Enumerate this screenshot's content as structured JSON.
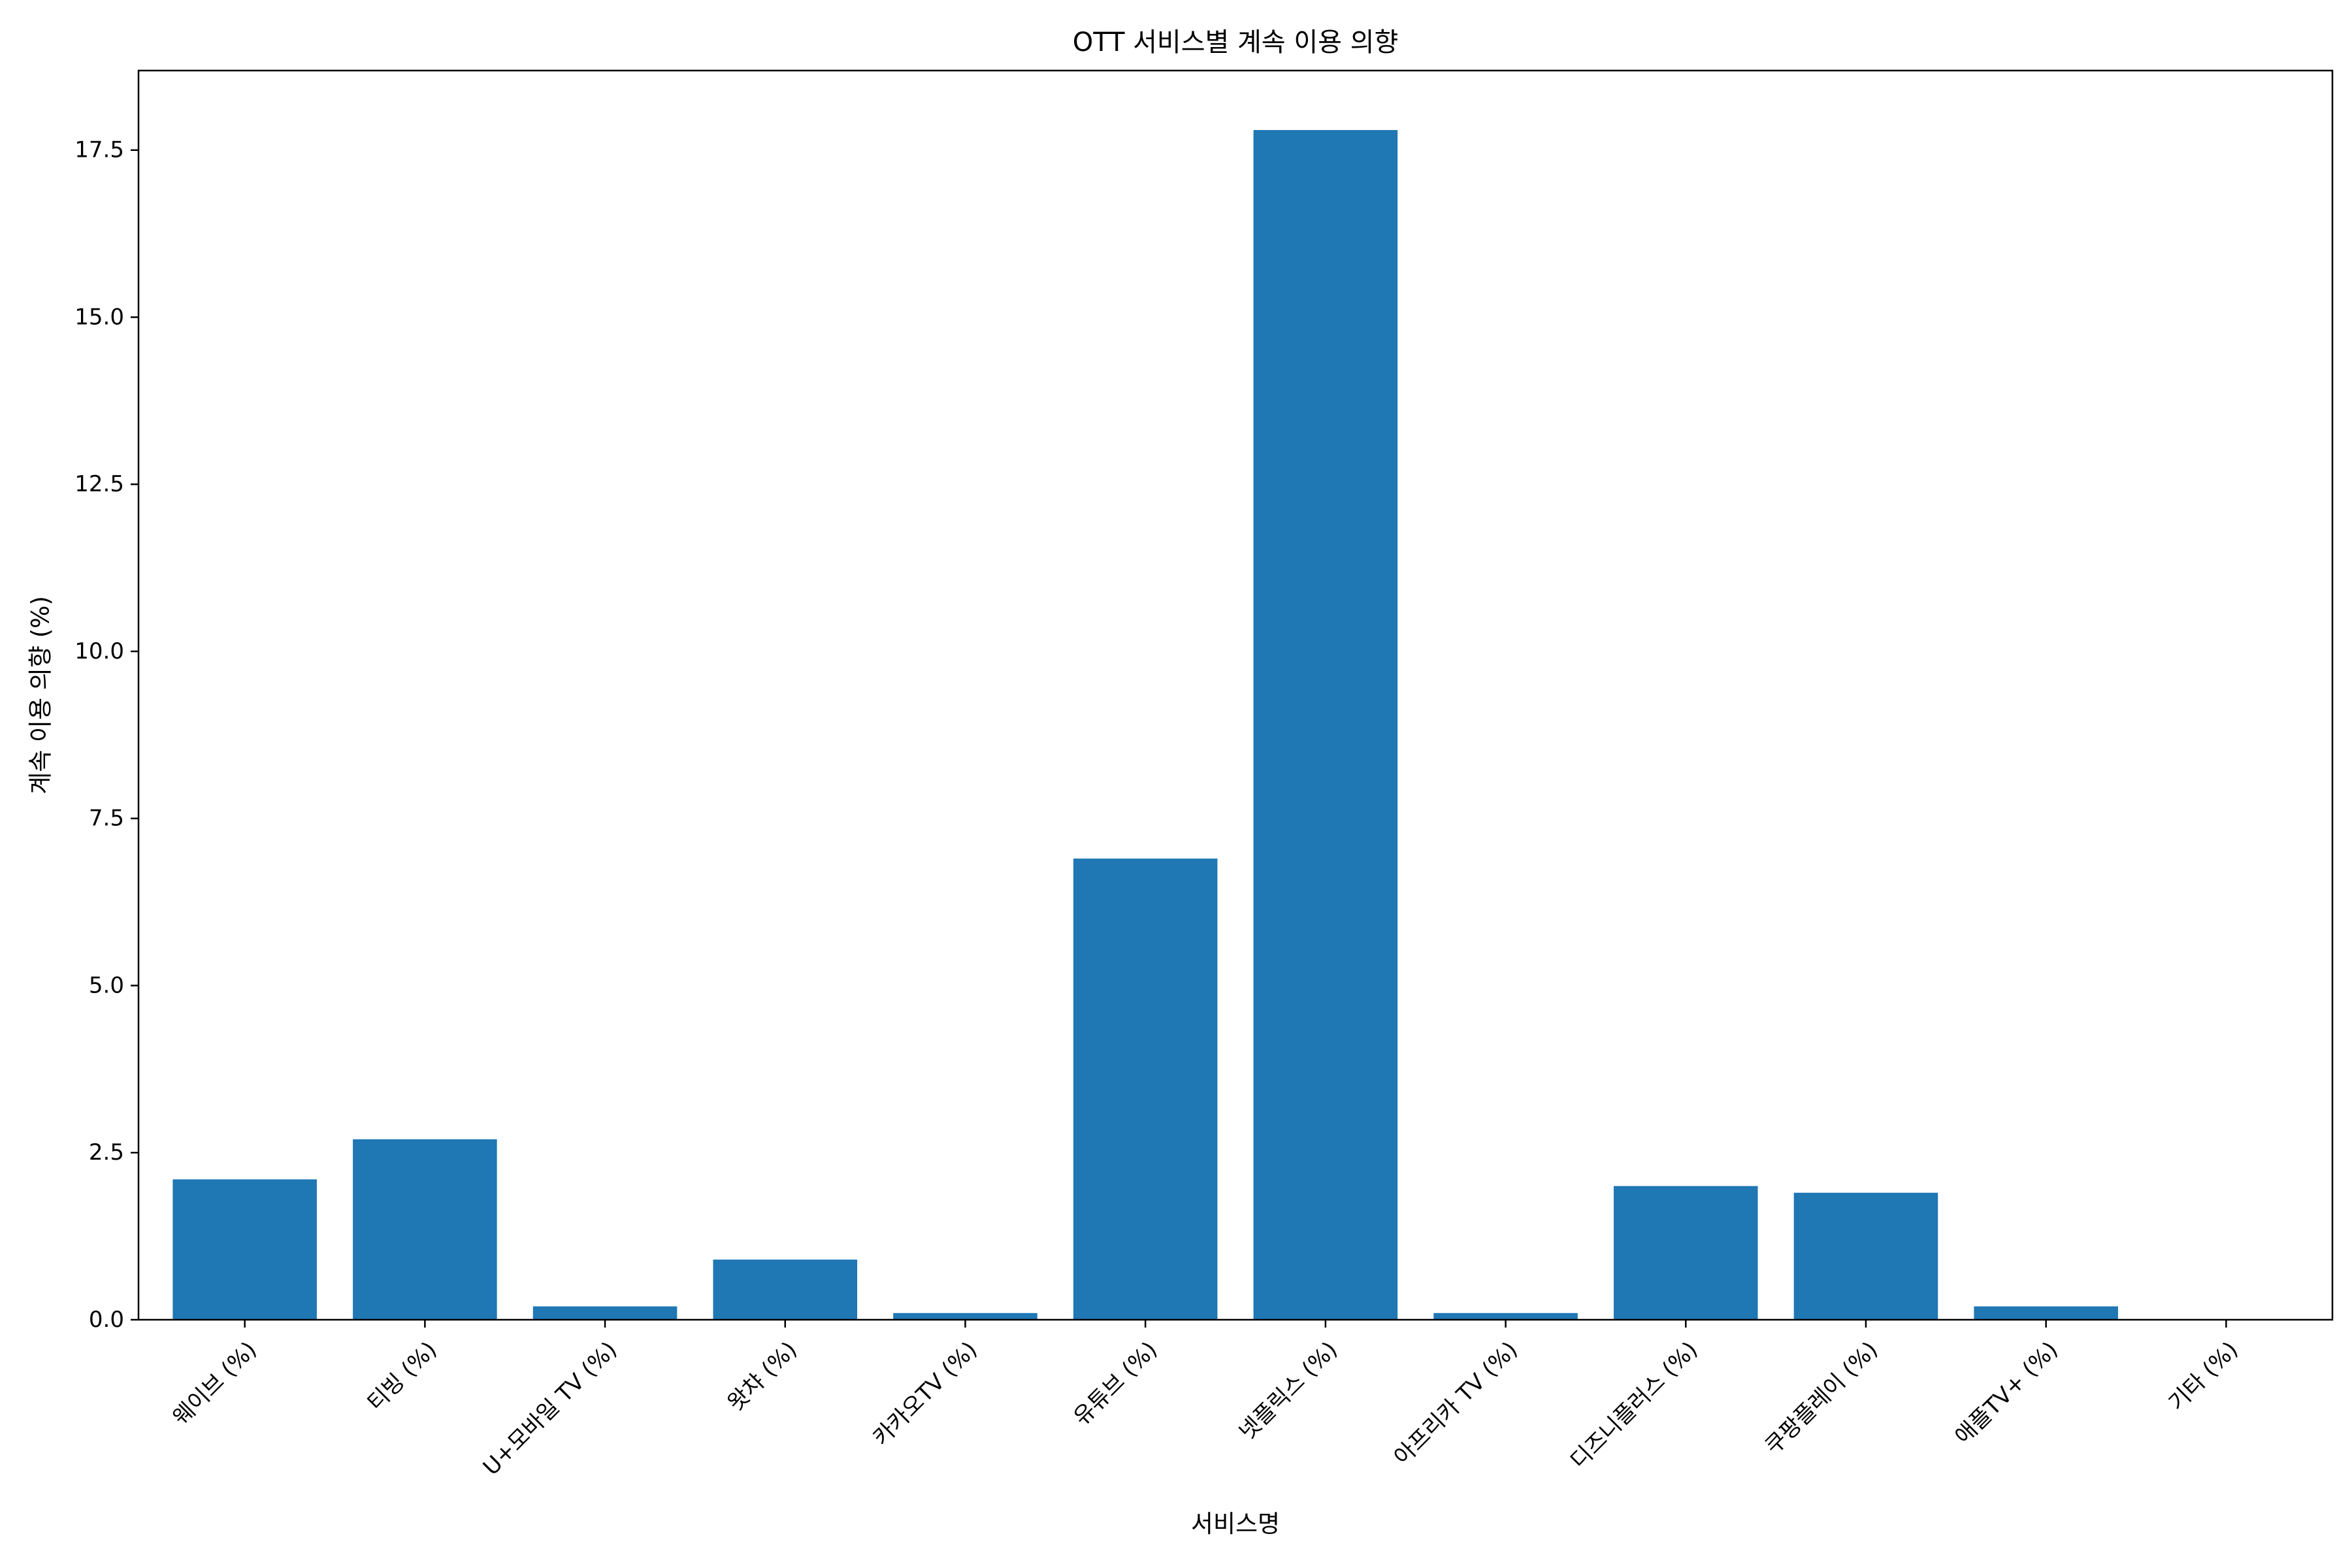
{
  "chart_data": {
    "type": "bar",
    "title": "OTT 서비스별 계속 이용 의향",
    "xlabel": "서비스명",
    "ylabel": "계속 이용 의향 (%)",
    "categories": [
      "웨이브 (%)",
      "티빙 (%)",
      "U+모바일 TV (%)",
      "왓챠 (%)",
      "카카오TV (%)",
      "유튜브 (%)",
      "넷플릭스 (%)",
      "아프리카 TV (%)",
      "디즈니플러스 (%)",
      "쿠팡플레이 (%)",
      "애플TV+ (%)",
      "기타 (%)"
    ],
    "values": [
      2.1,
      2.7,
      0.2,
      0.9,
      0.1,
      6.9,
      17.8,
      0.1,
      2.0,
      1.9,
      0.2,
      0.0
    ],
    "ylim": [
      0,
      18.69
    ],
    "yticks": [
      "0.0",
      "2.5",
      "5.0",
      "7.5",
      "10.0",
      "12.5",
      "15.0",
      "17.5"
    ],
    "grid": false,
    "bar_color": "#1f77b4"
  }
}
